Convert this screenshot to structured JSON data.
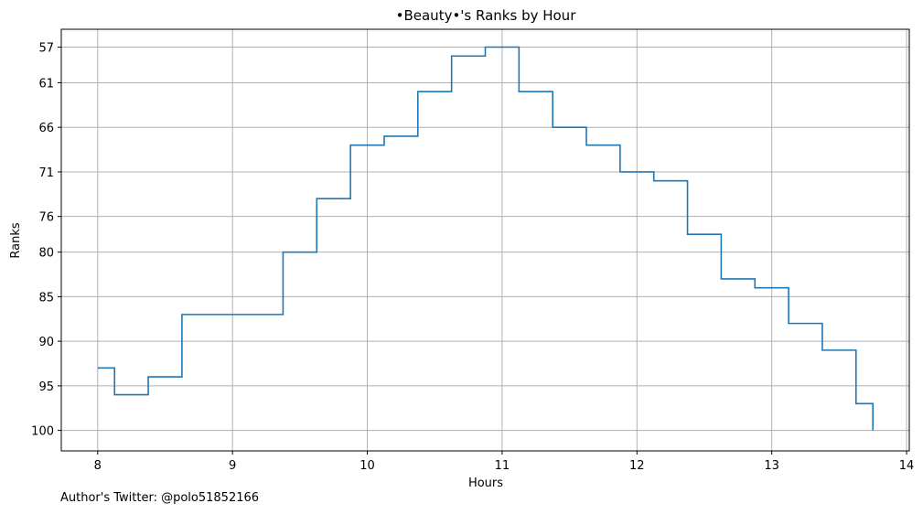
{
  "chart_data": {
    "type": "line",
    "step": "post",
    "title": "•Beauty•'s Ranks by Hour",
    "xlabel": "Hours",
    "ylabel": "Ranks",
    "xlim": [
      7.73,
      14.02
    ],
    "ylim": [
      102.3,
      55.0
    ],
    "y_inverted": true,
    "grid": true,
    "x_ticks": [
      8,
      9,
      10,
      11,
      12,
      13,
      14
    ],
    "y_ticks": [
      57,
      61,
      66,
      71,
      76,
      80,
      85,
      90,
      95,
      100
    ],
    "line_color": "#1f77b4",
    "series": [
      {
        "x": [
          8.0,
          8.125,
          8.375,
          8.625,
          9.125,
          9.375,
          9.625,
          9.875,
          10.125,
          10.375,
          10.625,
          10.875,
          11.125,
          11.375,
          11.625,
          11.875,
          12.125,
          12.375,
          12.625,
          12.875,
          13.125,
          13.375,
          13.625,
          13.75
        ],
        "y": [
          93,
          96,
          94,
          87,
          87,
          80,
          74,
          68,
          67,
          62,
          58,
          57,
          62,
          66,
          68,
          71,
          72,
          78,
          83,
          84,
          88,
          91,
          97,
          100
        ]
      }
    ]
  },
  "footer": {
    "credit": "Author's Twitter: @polo51852166"
  }
}
